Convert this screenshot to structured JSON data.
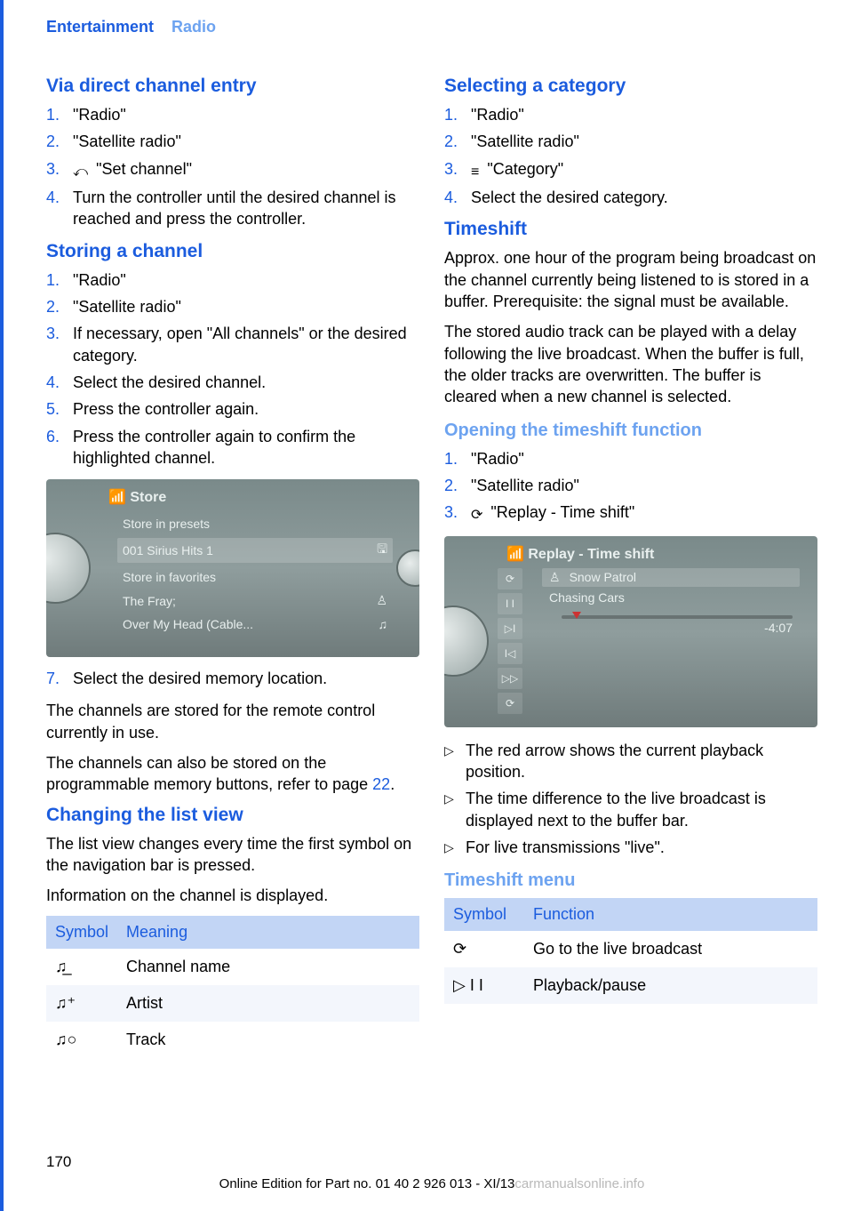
{
  "colors": {
    "primary_blue": "#1b5cde",
    "light_blue": "#6da3f0",
    "table_header_bg": "#c2d5f5",
    "table_alt_bg": "#f3f6fc",
    "screenshot_bg_top": "#7a8a8a",
    "screenshot_bg_bottom": "#6f7b7b",
    "watermark": "#b9b9b9"
  },
  "header": {
    "section": "Entertainment",
    "topic": "Radio"
  },
  "left": {
    "via_direct": {
      "heading": "Via direct channel entry",
      "steps": [
        "\"Radio\"",
        "\"Satellite radio\"",
        "  \"Set channel\"",
        "Turn the controller until the desired channel is reached and press the controller."
      ],
      "step3_icon": "⤺"
    },
    "storing": {
      "heading": "Storing a channel",
      "steps_a": [
        "\"Radio\"",
        "\"Satellite radio\"",
        "If necessary, open \"All channels\" or the desired category.",
        "Select the desired channel.",
        "Press the controller again.",
        "Press the controller again to confirm the highlighted channel."
      ],
      "screenshot": {
        "title": "Store",
        "lines": [
          {
            "text": "Store in presets",
            "hl": false,
            "icon": ""
          },
          {
            "text": "001   Sirius Hits 1",
            "hl": true,
            "icon": "🖫"
          },
          {
            "text": "Store in favorites",
            "hl": false,
            "icon": ""
          },
          {
            "text": "The Fray;",
            "hl": false,
            "icon": "♙"
          },
          {
            "text": "Over My Head (Cable...",
            "hl": false,
            "icon": "♫"
          }
        ]
      },
      "step7": "Select the desired memory location.",
      "para1": "The channels are stored for the remote control currently in use.",
      "para2_a": "The channels can also be stored on the programmable memory buttons, refer to page ",
      "para2_ref": "22",
      "para2_b": "."
    },
    "changing": {
      "heading": "Changing the list view",
      "para1": "The list view changes every time the first symbol on the navigation bar is pressed.",
      "para2": "Information on the channel is displayed.",
      "table": {
        "headers": [
          "Symbol",
          "Meaning"
        ],
        "rows": [
          {
            "sym": "♫̲",
            "meaning": "Channel name"
          },
          {
            "sym": "♫⁺",
            "meaning": "Artist"
          },
          {
            "sym": "♫○",
            "meaning": "Track"
          }
        ]
      }
    }
  },
  "right": {
    "selecting": {
      "heading": "Selecting a category",
      "steps": [
        "\"Radio\"",
        "\"Satellite radio\"",
        "  \"Category\"",
        "Select the desired category."
      ],
      "step3_icon": "≡"
    },
    "timeshift": {
      "heading": "Timeshift",
      "para1": "Approx. one hour of the program being broadcast on the channel currently being listened to is stored in a buffer. Prerequisite: the signal must be available.",
      "para2": "The stored audio track can be played with a delay following the live broadcast. When the buffer is full, the older tracks are overwritten. The buffer is cleared when a new channel is selected."
    },
    "opening": {
      "heading": "Opening the timeshift function",
      "steps": [
        "\"Radio\"",
        "\"Satellite radio\"",
        "   \"Replay - Time shift\""
      ],
      "step3_icon": "⟳",
      "screenshot": {
        "title": "Replay - Time shift",
        "icons": [
          "⟳",
          "I I",
          "▷I",
          "I◁",
          "▷▷",
          "⟳"
        ],
        "artist_icon": "♙",
        "artist": "Snow Patrol",
        "track": "Chasing Cars",
        "time": "-4:07"
      },
      "bullets": [
        "The red arrow shows the current playback position.",
        "The time difference to the live broadcast is displayed next to the buffer bar.",
        "For live transmissions \"live\"."
      ]
    },
    "menu": {
      "heading": "Timeshift menu",
      "table": {
        "headers": [
          "Symbol",
          "Function"
        ],
        "rows": [
          {
            "sym": "⟳",
            "func": "Go to the live broadcast"
          },
          {
            "sym": "▷    I I",
            "func": "Playback/pause"
          }
        ]
      }
    }
  },
  "footer": {
    "page": "170",
    "line_a": "Online Edition for Part no. 01 40 2 926 013 - XI/13",
    "watermark": "carmanualsonline.info"
  }
}
